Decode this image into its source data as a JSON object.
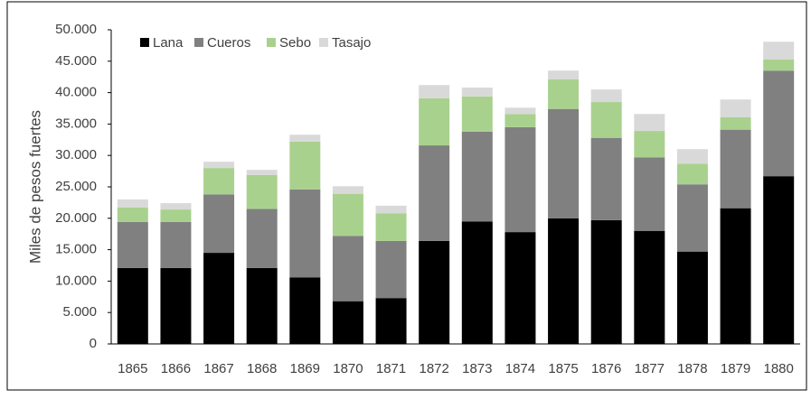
{
  "chart_data": {
    "type": "stacked_bar",
    "y_label": "Miles de pesos fuertes",
    "categories": [
      "1865",
      "1866",
      "1867",
      "1868",
      "1869",
      "1870",
      "1871",
      "1872",
      "1873",
      "1874",
      "1875",
      "1876",
      "1877",
      "1878",
      "1879",
      "1880"
    ],
    "series": [
      {
        "name": "Lana",
        "color": "#000000",
        "values": [
          12100,
          12100,
          14500,
          12100,
          10600,
          6800,
          7300,
          16400,
          19500,
          17800,
          20000,
          19700,
          18000,
          14700,
          21600,
          26700
        ]
      },
      {
        "name": "Cueros",
        "color": "#808080",
        "values": [
          7300,
          7300,
          9300,
          9400,
          14000,
          10400,
          9100,
          15200,
          14300,
          16700,
          17400,
          13100,
          11700,
          10700,
          12500,
          16800
        ]
      },
      {
        "name": "Sebo",
        "color": "#a9d18e",
        "values": [
          2300,
          2000,
          4200,
          5400,
          7600,
          6700,
          4400,
          7500,
          5600,
          2100,
          4700,
          5700,
          4200,
          3300,
          2000,
          1800
        ]
      },
      {
        "name": "Tasajo",
        "color": "#d9d9d9",
        "values": [
          1300,
          1000,
          1000,
          800,
          1100,
          1200,
          1200,
          2100,
          1400,
          1000,
          1400,
          2000,
          2700,
          2300,
          2800,
          2800
        ]
      }
    ],
    "ylim": [
      0,
      50000
    ],
    "yticks": [
      0,
      {
        "value": 5000,
        "label": "5.000"
      },
      {
        "value": 10000,
        "label": "10.000"
      },
      {
        "value": 15000,
        "label": "15.000"
      },
      {
        "value": 20000,
        "label": "20.000"
      },
      {
        "value": 25000,
        "label": "25.000"
      },
      {
        "value": 30000,
        "label": "30.000"
      },
      {
        "value": 35000,
        "label": "35.000"
      },
      {
        "value": 40000,
        "label": "40.000"
      },
      {
        "value": 45000,
        "label": "45.000"
      },
      {
        "value": 50000,
        "label": "50.000"
      }
    ],
    "legend": "top-left"
  }
}
